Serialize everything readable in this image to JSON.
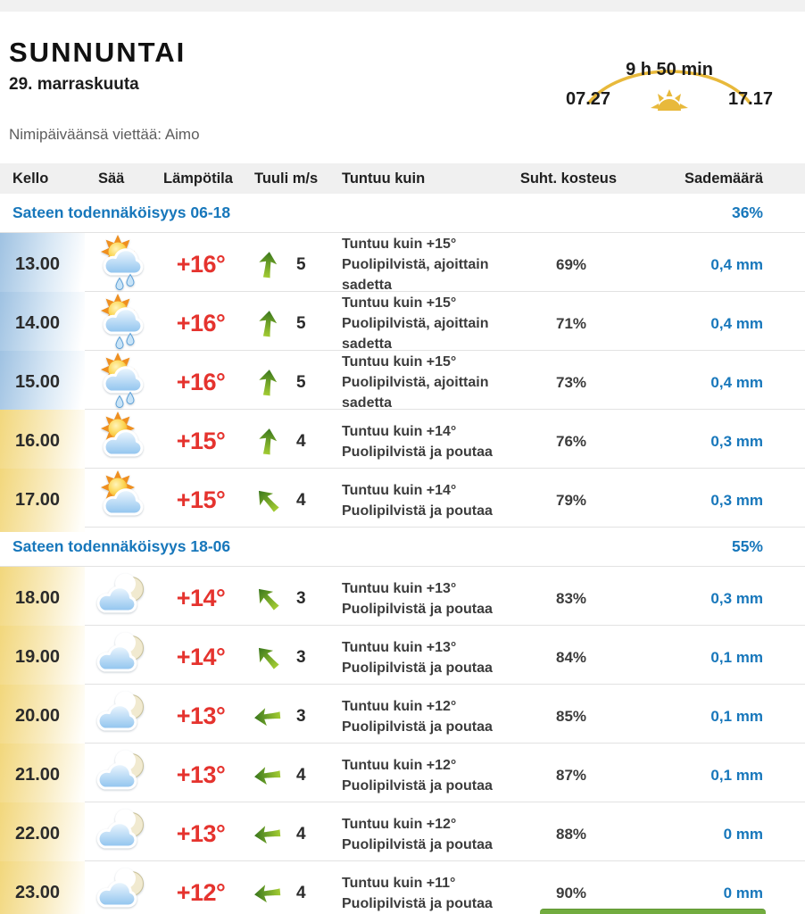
{
  "header": {
    "title": "SUNNUNTAI",
    "date": "29. marraskuuta",
    "nameday": "Nimipäiväänsä viettää: Aimo"
  },
  "sun": {
    "daylight": "9 h 50 min",
    "sunrise": "07.27",
    "sunset": "17.17",
    "arc_color": "#e8b93b"
  },
  "table": {
    "columns": [
      "Kello",
      "Sää",
      "Lämpötila",
      "Tuuli m/s",
      "Tuntuu kuin",
      "Suht. kosteus",
      "Sademäärä"
    ]
  },
  "colors": {
    "accent_blue": "#1777bb",
    "temp_red": "#e5332e",
    "arrow_green_dark": "#39761c",
    "arrow_green_light": "#a3cc33",
    "day_cell": "#9fc2e2",
    "evening_cell": "#f2d77c"
  },
  "sections": [
    {
      "label": "Sateen todennäköisyys 06-18",
      "probability": "36%",
      "rows": [
        {
          "time": "13.00",
          "icon": "sun-cloud-rain",
          "time_bg": "day",
          "temp": "+16°",
          "wind_dir": "up",
          "wind_speed": "5",
          "feels": "Tuntuu kuin +15°",
          "description": "Puolipilvistä, ajoittain sadetta",
          "humidity": "69%",
          "rain": "0,4 mm"
        },
        {
          "time": "14.00",
          "icon": "sun-cloud-rain",
          "time_bg": "day",
          "temp": "+16°",
          "wind_dir": "up",
          "wind_speed": "5",
          "feels": "Tuntuu kuin +15°",
          "description": "Puolipilvistä, ajoittain sadetta",
          "humidity": "71%",
          "rain": "0,4 mm"
        },
        {
          "time": "15.00",
          "icon": "sun-cloud-rain",
          "time_bg": "day",
          "temp": "+16°",
          "wind_dir": "up",
          "wind_speed": "5",
          "feels": "Tuntuu kuin +15°",
          "description": "Puolipilvistä, ajoittain sadetta",
          "humidity": "73%",
          "rain": "0,4 mm"
        },
        {
          "time": "16.00",
          "icon": "sun-cloud",
          "time_bg": "evening",
          "temp": "+15°",
          "wind_dir": "up",
          "wind_speed": "4",
          "feels": "Tuntuu kuin +14°",
          "description": "Puolipilvistä ja poutaa",
          "humidity": "76%",
          "rain": "0,3 mm"
        },
        {
          "time": "17.00",
          "icon": "sun-cloud",
          "time_bg": "evening",
          "temp": "+15°",
          "wind_dir": "up-left",
          "wind_speed": "4",
          "feels": "Tuntuu kuin +14°",
          "description": "Puolipilvistä ja poutaa",
          "humidity": "79%",
          "rain": "0,3 mm"
        }
      ]
    },
    {
      "label": "Sateen todennäköisyys 18-06",
      "probability": "55%",
      "rows": [
        {
          "time": "18.00",
          "icon": "moon-cloud",
          "time_bg": "evening",
          "temp": "+14°",
          "wind_dir": "up-left",
          "wind_speed": "3",
          "feels": "Tuntuu kuin +13°",
          "description": "Puolipilvistä ja poutaa",
          "humidity": "83%",
          "rain": "0,3 mm"
        },
        {
          "time": "19.00",
          "icon": "moon-cloud",
          "time_bg": "evening",
          "temp": "+14°",
          "wind_dir": "up-left",
          "wind_speed": "3",
          "feels": "Tuntuu kuin +13°",
          "description": "Puolipilvistä ja poutaa",
          "humidity": "84%",
          "rain": "0,1 mm"
        },
        {
          "time": "20.00",
          "icon": "moon-cloud",
          "time_bg": "evening",
          "temp": "+13°",
          "wind_dir": "left",
          "wind_speed": "3",
          "feels": "Tuntuu kuin +12°",
          "description": "Puolipilvistä ja poutaa",
          "humidity": "85%",
          "rain": "0,1 mm"
        },
        {
          "time": "21.00",
          "icon": "moon-cloud",
          "time_bg": "evening",
          "temp": "+13°",
          "wind_dir": "left",
          "wind_speed": "4",
          "feels": "Tuntuu kuin +12°",
          "description": "Puolipilvistä ja poutaa",
          "humidity": "87%",
          "rain": "0,1 mm"
        },
        {
          "time": "22.00",
          "icon": "moon-cloud",
          "time_bg": "evening",
          "temp": "+13°",
          "wind_dir": "left",
          "wind_speed": "4",
          "feels": "Tuntuu kuin +12°",
          "description": "Puolipilvistä ja poutaa",
          "humidity": "88%",
          "rain": "0 mm"
        },
        {
          "time": "23.00",
          "icon": "moon-cloud",
          "time_bg": "evening",
          "temp": "+12°",
          "wind_dir": "left",
          "wind_speed": "4",
          "feels": "Tuntuu kuin +11°",
          "description": "Puolipilvistä ja poutaa",
          "humidity": "90%",
          "rain": "0 mm"
        }
      ]
    }
  ]
}
